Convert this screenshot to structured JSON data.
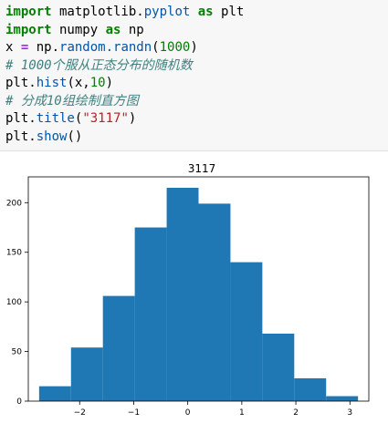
{
  "code": {
    "l1": {
      "kw1": "import",
      "mod": " matplotlib.",
      "attr": "pyplot",
      "kw2": " as",
      "alias": " plt"
    },
    "l2": {
      "kw1": "import",
      "mod": " numpy",
      "kw2": " as",
      "alias": " np"
    },
    "l3": {
      "var": "x ",
      "op": "=",
      "obj": " np.",
      "fn": "random.randn",
      "open": "(",
      "num": "1000",
      "close": ")"
    },
    "l4": {
      "comment": "# 1000个服从正态分布的随机数"
    },
    "l5": {
      "obj": "plt.",
      "fn": "hist",
      "args": "(x,",
      "num": "10",
      "close": ")"
    },
    "l6": {
      "comment": "# 分成10组绘制直方图"
    },
    "l7": {
      "obj": "plt.",
      "fn": "title",
      "open": "(",
      "str": "\"3117\"",
      "close": ")"
    },
    "l8": {
      "obj": "plt.",
      "fn": "show",
      "parens": "()"
    }
  },
  "chart_data": {
    "type": "bar",
    "title": "3117",
    "bins": [
      {
        "start": -2.75,
        "end": -2.16,
        "count": 15
      },
      {
        "start": -2.16,
        "end": -1.57,
        "count": 54
      },
      {
        "start": -1.57,
        "end": -0.98,
        "count": 106
      },
      {
        "start": -0.98,
        "end": -0.39,
        "count": 175
      },
      {
        "start": -0.39,
        "end": 0.2,
        "count": 215
      },
      {
        "start": 0.2,
        "end": 0.79,
        "count": 199
      },
      {
        "start": 0.79,
        "end": 1.38,
        "count": 140
      },
      {
        "start": 1.38,
        "end": 1.97,
        "count": 68
      },
      {
        "start": 1.97,
        "end": 2.56,
        "count": 23
      },
      {
        "start": 2.56,
        "end": 3.15,
        "count": 5
      }
    ],
    "xlim": [
      -2.95,
      3.35
    ],
    "ylim": [
      0,
      226
    ],
    "xticks": [
      -2,
      -1,
      0,
      1,
      2,
      3
    ],
    "yticks": [
      0,
      50,
      100,
      150,
      200
    ],
    "bar_color": "#1f77b4"
  }
}
